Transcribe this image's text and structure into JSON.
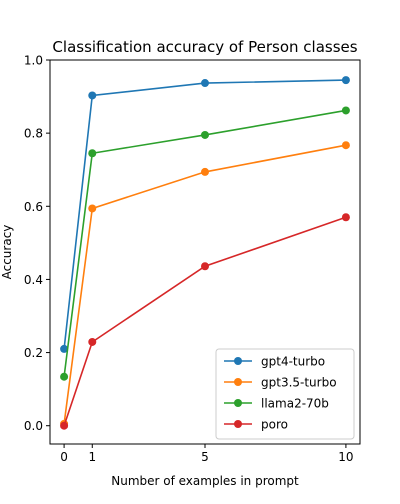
{
  "chart_data": {
    "type": "line",
    "title": "Classification accuracy of Person classes",
    "xlabel": "Number of examples in prompt",
    "ylabel": "Accuracy",
    "x": [
      0,
      1,
      5,
      10
    ],
    "xticks": [
      0,
      1,
      5,
      10
    ],
    "yticks": [
      0.0,
      0.2,
      0.4,
      0.6,
      0.8,
      1.0
    ],
    "ytick_labels": [
      "0.0",
      "0.2",
      "0.4",
      "0.6",
      "0.8",
      "1.0"
    ],
    "xlim": [
      -0.5,
      10.5
    ],
    "ylim": [
      -0.05,
      1.0
    ],
    "grid": false,
    "legend_position": "lower-right",
    "series": [
      {
        "name": "gpt4-turbo",
        "color": "#1f77b4",
        "values": [
          0.21,
          0.903,
          0.937,
          0.945
        ]
      },
      {
        "name": "gpt3.5-turbo",
        "color": "#ff7f0e",
        "values": [
          0.005,
          0.594,
          0.694,
          0.767
        ]
      },
      {
        "name": "llama2-70b",
        "color": "#2ca02c",
        "values": [
          0.134,
          0.745,
          0.795,
          0.862
        ]
      },
      {
        "name": "poro",
        "color": "#d62728",
        "values": [
          0.0,
          0.229,
          0.436,
          0.57
        ]
      }
    ]
  }
}
